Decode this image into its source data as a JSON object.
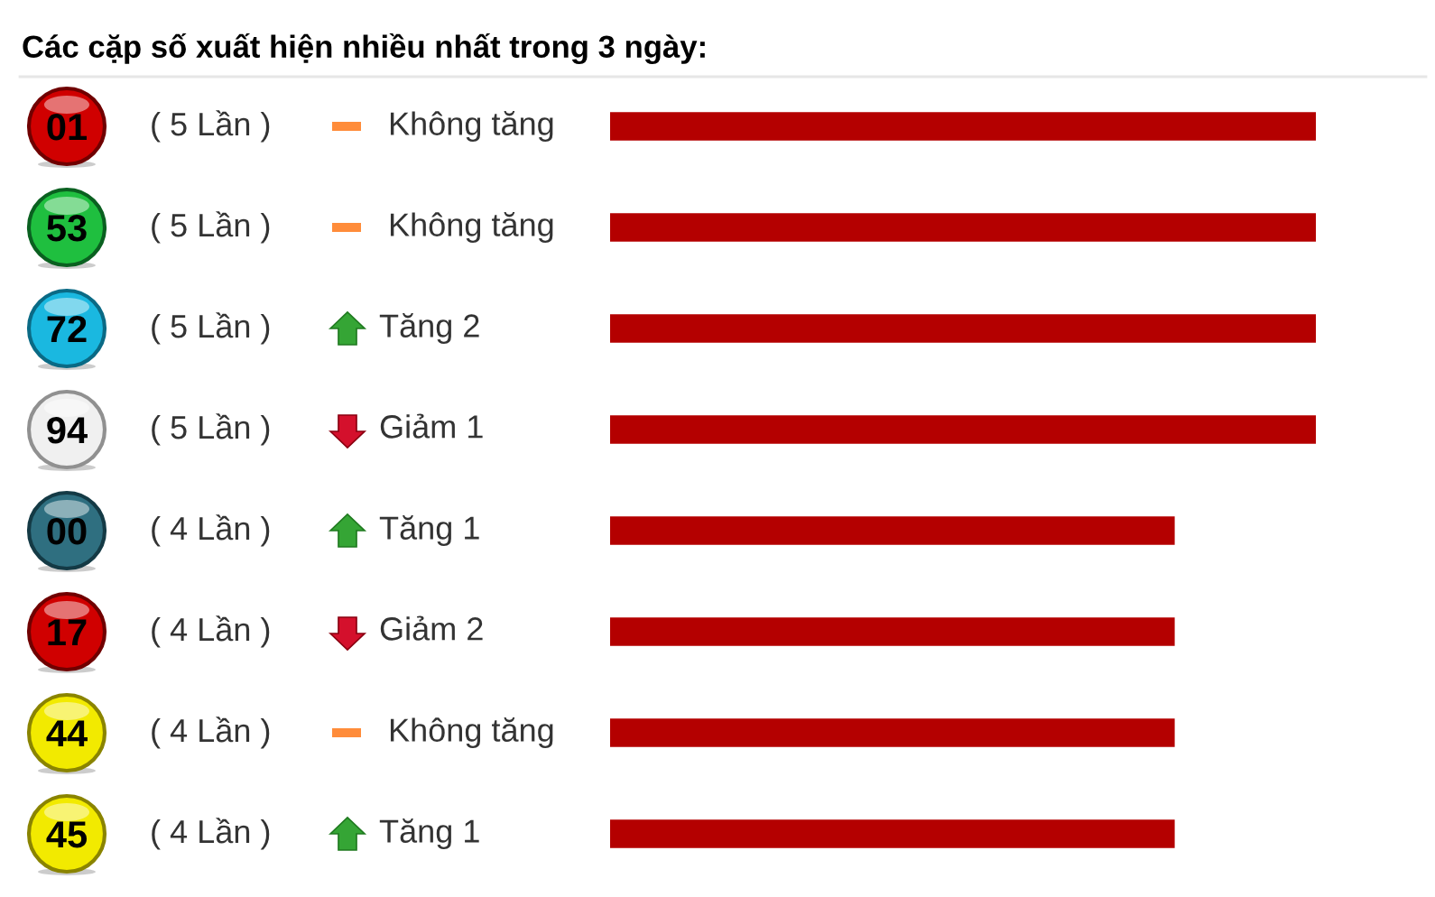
{
  "chart_data": {
    "type": "bar",
    "orientation": "horizontal",
    "title": "Các cặp số xuất hiện nhiều nhất trong 3 ngày:",
    "categories": [
      "01",
      "53",
      "72",
      "94",
      "00",
      "17",
      "44",
      "45"
    ],
    "values": [
      5,
      5,
      5,
      5,
      4,
      4,
      4,
      4
    ],
    "value_labels": [
      "( 5 Lần )",
      "( 5 Lần )",
      "( 5 Lần )",
      "( 5 Lần )",
      "( 4 Lần )",
      "( 4 Lần )",
      "( 4 Lần )",
      "( 4 Lần )"
    ],
    "color": "#b40000",
    "xlim": [
      0,
      5
    ],
    "tick_labels": "y",
    "annotations": [
      "Không tăng",
      "Không tăng",
      "Tăng 2",
      "Giảm 1",
      "Tăng 1",
      "Giảm 2",
      "Không tăng",
      "Tăng 1"
    ]
  }
}
